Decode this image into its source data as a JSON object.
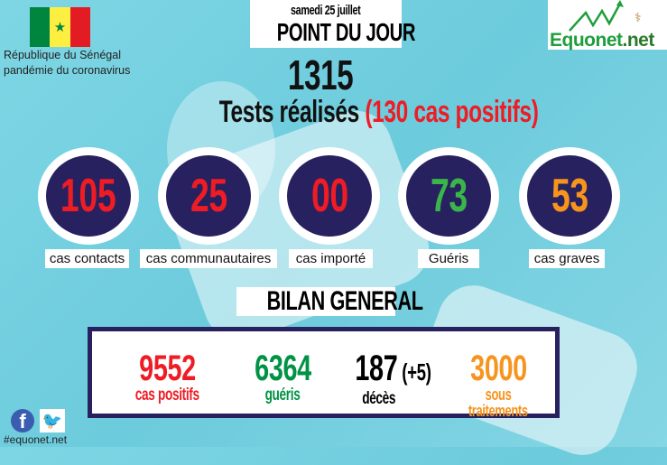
{
  "header": {
    "country": "République du Sénégal",
    "subtitle": "pandémie du coronavirus",
    "date": "samedi 25 juillet",
    "title": "POINT DU JOUR",
    "logo_text": "Equonet.net"
  },
  "tests": {
    "count": "1315",
    "label": "Tests réalisés",
    "positives": "(130 cas positifs)"
  },
  "circles": [
    {
      "value": "105",
      "label": "cas contacts",
      "color": "#ee1c25"
    },
    {
      "value": "25",
      "label": "cas communautaires",
      "color": "#ee1c25"
    },
    {
      "value": "00",
      "label": "cas importé",
      "color": "#ee1c25"
    },
    {
      "value": "73",
      "label": "Guéris",
      "color": "#3ab54a"
    },
    {
      "value": "53",
      "label": "cas graves",
      "color": "#f7941d"
    }
  ],
  "bilan": {
    "title": "BILAN GENERAL",
    "positifs": {
      "value": "9552",
      "label": "cas positifs",
      "color": "#ee1c25"
    },
    "gueris": {
      "value": "6364",
      "label": "guéris",
      "color": "#009245"
    },
    "deces": {
      "value": "187",
      "delta": "(+5)",
      "label": "décès",
      "color": "#000000"
    },
    "traitement": {
      "value": "3000",
      "label1": "sous",
      "label2": "traitements",
      "color": "#f7941d"
    }
  },
  "footer": {
    "hashtag": "#equonet.net",
    "icons": [
      "facebook-icon",
      "twitter-icon"
    ]
  },
  "colors": {
    "navy": "#27215f",
    "background": "#7ed6e4"
  }
}
